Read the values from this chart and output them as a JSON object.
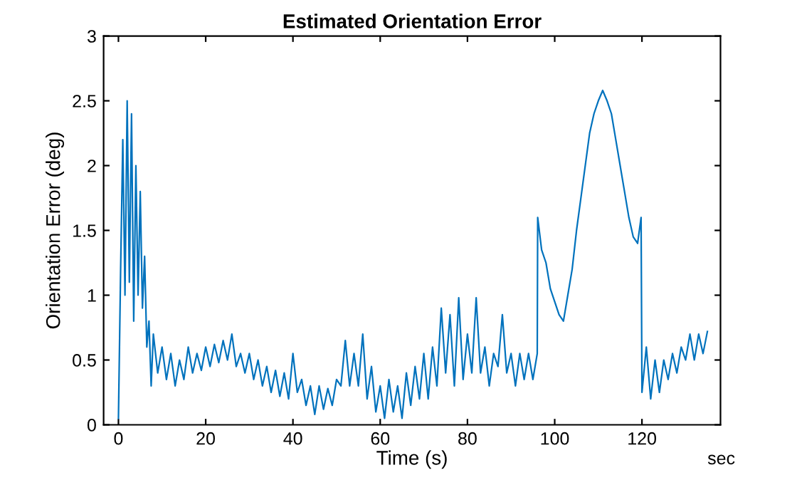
{
  "chart_data": {
    "type": "line",
    "title": "Estimated Orientation Error",
    "xlabel": "Time (s)",
    "ylabel": "Orientation Error (deg)",
    "annotations": [
      "sec"
    ],
    "x": [
      0,
      0.5,
      1,
      1.5,
      2,
      2.5,
      3,
      3.5,
      4,
      4.5,
      5,
      5.5,
      6,
      6.5,
      7,
      7.5,
      8,
      9,
      10,
      11,
      12,
      13,
      14,
      15,
      16,
      17,
      18,
      19,
      20,
      21,
      22,
      23,
      24,
      25,
      26,
      27,
      28,
      29,
      30,
      31,
      32,
      33,
      34,
      35,
      36,
      37,
      38,
      39,
      40,
      41,
      42,
      43,
      44,
      45,
      46,
      47,
      48,
      49,
      50,
      51,
      52,
      53,
      54,
      55,
      56,
      57,
      58,
      59,
      60,
      61,
      62,
      63,
      64,
      65,
      66,
      67,
      68,
      69,
      70,
      71,
      72,
      73,
      74,
      75,
      76,
      77,
      78,
      79,
      80,
      81,
      82,
      83,
      84,
      85,
      86,
      87,
      88,
      89,
      90,
      91,
      92,
      93,
      94,
      95,
      96,
      96.1,
      97,
      98,
      99,
      100,
      101,
      102,
      103,
      104,
      105,
      106,
      107,
      108,
      109,
      110,
      111,
      112,
      113,
      114,
      115,
      116,
      117,
      118,
      119,
      119.8,
      120,
      121,
      122,
      123,
      124,
      125,
      126,
      127,
      128,
      129,
      130,
      131,
      132,
      133,
      134,
      135
    ],
    "series": [
      {
        "color": "#0072bd",
        "values": [
          0.05,
          1.2,
          2.2,
          1.0,
          2.5,
          1.1,
          2.4,
          0.8,
          2.0,
          1.0,
          1.8,
          0.9,
          1.3,
          0.6,
          0.8,
          0.3,
          0.7,
          0.4,
          0.6,
          0.35,
          0.55,
          0.3,
          0.5,
          0.35,
          0.6,
          0.4,
          0.55,
          0.42,
          0.6,
          0.45,
          0.62,
          0.48,
          0.65,
          0.5,
          0.7,
          0.45,
          0.55,
          0.4,
          0.55,
          0.35,
          0.5,
          0.3,
          0.45,
          0.25,
          0.42,
          0.22,
          0.4,
          0.2,
          0.55,
          0.25,
          0.35,
          0.15,
          0.3,
          0.08,
          0.3,
          0.12,
          0.28,
          0.15,
          0.35,
          0.3,
          0.65,
          0.3,
          0.55,
          0.3,
          0.7,
          0.2,
          0.45,
          0.1,
          0.3,
          0.05,
          0.35,
          0.1,
          0.3,
          0.05,
          0.4,
          0.15,
          0.45,
          0.2,
          0.55,
          0.2,
          0.6,
          0.3,
          0.9,
          0.4,
          0.85,
          0.3,
          0.98,
          0.35,
          0.7,
          0.4,
          0.98,
          0.4,
          0.6,
          0.3,
          0.55,
          0.45,
          0.85,
          0.4,
          0.55,
          0.3,
          0.55,
          0.35,
          0.55,
          0.35,
          0.55,
          1.6,
          1.35,
          1.25,
          1.05,
          0.95,
          0.85,
          0.8,
          1.0,
          1.2,
          1.5,
          1.75,
          2.0,
          2.25,
          2.4,
          2.5,
          2.58,
          2.5,
          2.4,
          2.2,
          2.0,
          1.8,
          1.6,
          1.45,
          1.4,
          1.6,
          0.25,
          0.6,
          0.2,
          0.5,
          0.25,
          0.5,
          0.35,
          0.55,
          0.4,
          0.6,
          0.5,
          0.7,
          0.5,
          0.7,
          0.55,
          0.72
        ]
      }
    ],
    "xlim": [
      -3.4,
      138
    ],
    "xticks": [
      0,
      20,
      40,
      60,
      80,
      100,
      120
    ],
    "ylim": [
      0,
      3
    ],
    "yticks": [
      0,
      0.5,
      1,
      1.5,
      2,
      2.5,
      3
    ],
    "grid": false,
    "legend": false
  }
}
